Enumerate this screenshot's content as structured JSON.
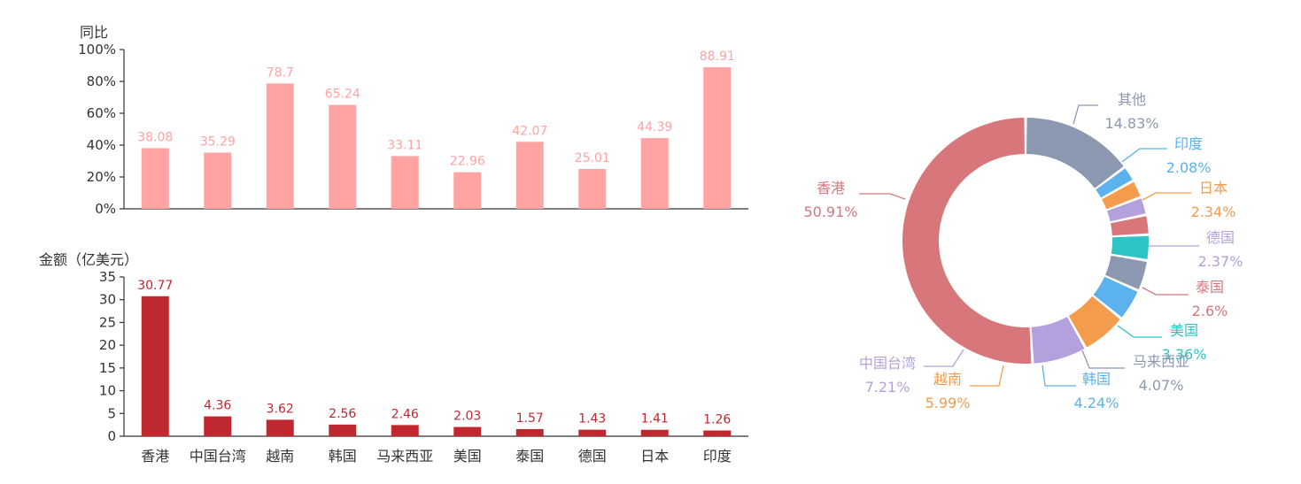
{
  "chart_data": [
    {
      "type": "bar",
      "ylabel": "同比",
      "ylim": [
        0,
        100
      ],
      "yticks": [
        "0%",
        "20%",
        "40%",
        "60%",
        "80%",
        "100%"
      ],
      "categories": [
        "香港",
        "中国台湾",
        "越南",
        "韩国",
        "马来西亚",
        "美国",
        "泰国",
        "德国",
        "日本",
        "印度"
      ],
      "values": [
        38.08,
        35.29,
        78.7,
        65.24,
        33.11,
        22.96,
        42.07,
        25.01,
        44.39,
        88.91
      ],
      "value_labels": [
        "38.08",
        "35.29",
        "78.7",
        "65.24",
        "33.11",
        "22.96",
        "42.07",
        "25.01",
        "44.39",
        "88.91"
      ],
      "color": "#ffa3a3"
    },
    {
      "type": "bar",
      "ylabel": "金额（亿美元）",
      "ylim": [
        0,
        35
      ],
      "yticks": [
        "0",
        "5",
        "10",
        "15",
        "20",
        "25",
        "30",
        "35"
      ],
      "categories": [
        "香港",
        "中国台湾",
        "越南",
        "韩国",
        "马来西亚",
        "美国",
        "泰国",
        "德国",
        "日本",
        "印度"
      ],
      "values": [
        30.77,
        4.36,
        3.62,
        2.56,
        2.46,
        2.03,
        1.57,
        1.43,
        1.41,
        1.26
      ],
      "value_labels": [
        "30.77",
        "4.36",
        "3.62",
        "2.56",
        "2.46",
        "2.03",
        "1.57",
        "1.43",
        "1.41",
        "1.26"
      ],
      "color": "#c0282f"
    },
    {
      "type": "pie",
      "donut": true,
      "slices": [
        {
          "name": "香港",
          "value": 50.91,
          "label": "50.91%",
          "color": "#d7777c"
        },
        {
          "name": "中国台湾",
          "value": 7.21,
          "label": "7.21%",
          "color": "#b4a0dc"
        },
        {
          "name": "越南",
          "value": 5.99,
          "label": "5.99%",
          "color": "#f39c4c"
        },
        {
          "name": "韩国",
          "value": 4.24,
          "label": "4.24%",
          "color": "#5cb2ec"
        },
        {
          "name": "马来西亚",
          "value": 4.07,
          "label": "4.07%",
          "color": "#8c98b0"
        },
        {
          "name": "美国",
          "value": 3.36,
          "label": "3.36%",
          "color": "#2cc4c4"
        },
        {
          "name": "泰国",
          "value": 2.6,
          "label": "2.6%",
          "color": "#d7777c"
        },
        {
          "name": "德国",
          "value": 2.37,
          "label": "2.37%",
          "color": "#b4a0dc"
        },
        {
          "name": "日本",
          "value": 2.34,
          "label": "2.34%",
          "color": "#f39c4c"
        },
        {
          "name": "印度",
          "value": 2.08,
          "label": "2.08%",
          "color": "#5cb2ec"
        },
        {
          "name": "其他",
          "value": 14.83,
          "label": "14.83%",
          "color": "#8c98b0"
        }
      ]
    }
  ]
}
